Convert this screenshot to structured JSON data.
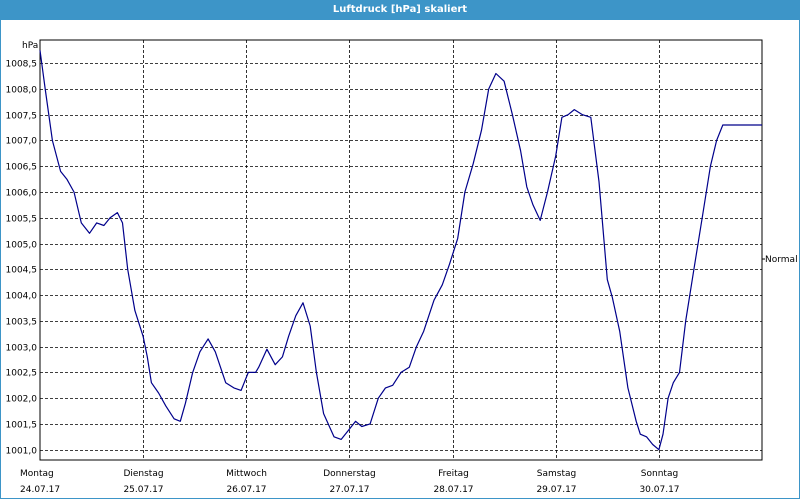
{
  "window": {
    "title": "Luftdruck [hPa] skaliert"
  },
  "chart_data": {
    "type": "line",
    "title": "Luftdruck [hPa] skaliert",
    "ylabel": "hPa",
    "xlabel": "",
    "ylim": [
      1000.8,
      1008.95
    ],
    "yticks": [
      1001.0,
      1001.5,
      1002.0,
      1002.5,
      1003.0,
      1003.5,
      1004.0,
      1004.5,
      1005.0,
      1005.5,
      1006.0,
      1006.5,
      1007.0,
      1007.5,
      1008.0,
      1008.5
    ],
    "ytick_labels": [
      "1001,0",
      "1001,5",
      "1002,0",
      "1002,5",
      "1003,0",
      "1003,5",
      "1004,0",
      "1004,5",
      "1005,0",
      "1005,5",
      "1006,0",
      "1006,5",
      "1007,0",
      "1007,5",
      "1008,0",
      "1008,5"
    ],
    "xlim": [
      0,
      7
    ],
    "x_categories": [
      {
        "day": "Montag",
        "date": "24.07.17"
      },
      {
        "day": "Dienstag",
        "date": "25.07.17"
      },
      {
        "day": "Mittwoch",
        "date": "26.07.17"
      },
      {
        "day": "Donnerstag",
        "date": "27.07.17"
      },
      {
        "day": "Freitag",
        "date": "28.07.17"
      },
      {
        "day": "Samstag",
        "date": "29.07.17"
      },
      {
        "day": "Sonntag",
        "date": "30.07.17"
      }
    ],
    "reference_line": {
      "label": "Normal",
      "value": 1004.7
    },
    "grid": true,
    "series": [
      {
        "color": "#00008b",
        "x": [
          0,
          0.05,
          0.12,
          0.2,
          0.26,
          0.33,
          0.4,
          0.48,
          0.55,
          0.62,
          0.68,
          0.75,
          0.8,
          0.85,
          0.92,
          1.0,
          1.04,
          1.08,
          1.15,
          1.22,
          1.3,
          1.36,
          1.41,
          1.48,
          1.55,
          1.63,
          1.7,
          1.8,
          1.88,
          1.95,
          2.02,
          2.09,
          2.12,
          2.2,
          2.28,
          2.35,
          2.41,
          2.48,
          2.55,
          2.62,
          2.68,
          2.75,
          2.85,
          2.92,
          3.0,
          3.06,
          3.12,
          3.2,
          3.28,
          3.35,
          3.42,
          3.5,
          3.58,
          3.65,
          3.72,
          3.82,
          3.9,
          3.97,
          4.05,
          4.12,
          4.2,
          4.28,
          4.35,
          4.42,
          4.5,
          4.58,
          4.66,
          4.72,
          4.78,
          4.85,
          4.92,
          5.0,
          5.06,
          5.12,
          5.18,
          5.26,
          5.34,
          5.42,
          5.5,
          5.55,
          5.62,
          5.7,
          5.78,
          5.82,
          5.88,
          5.94,
          6.0,
          6.04,
          6.09,
          6.14,
          6.2,
          6.26,
          6.34,
          6.42,
          6.5,
          6.56,
          6.62,
          6.68,
          6.74,
          6.8,
          6.86,
          6.94,
          7.0
        ],
        "values": [
          1008.75,
          1008.0,
          1007.0,
          1006.4,
          1006.25,
          1006.0,
          1005.4,
          1005.2,
          1005.4,
          1005.35,
          1005.5,
          1005.6,
          1005.4,
          1004.5,
          1003.7,
          1003.2,
          1002.8,
          1002.3,
          1002.1,
          1001.85,
          1001.6,
          1001.55,
          1001.9,
          1002.5,
          1002.9,
          1003.15,
          1002.9,
          1002.3,
          1002.2,
          1002.15,
          1002.5,
          1002.5,
          1002.6,
          1002.95,
          1002.65,
          1002.8,
          1003.2,
          1003.6,
          1003.85,
          1003.4,
          1002.5,
          1001.7,
          1001.25,
          1001.2,
          1001.4,
          1001.55,
          1001.45,
          1001.5,
          1002.0,
          1002.2,
          1002.25,
          1002.5,
          1002.6,
          1003.0,
          1003.3,
          1003.9,
          1004.2,
          1004.6,
          1005.1,
          1006.0,
          1006.55,
          1007.2,
          1008.0,
          1008.3,
          1008.15,
          1007.5,
          1006.8,
          1006.1,
          1005.75,
          1005.45,
          1006.0,
          1006.7,
          1007.45,
          1007.5,
          1007.6,
          1007.5,
          1007.45,
          1006.2,
          1004.3,
          1003.95,
          1003.3,
          1002.2,
          1001.55,
          1001.3,
          1001.25,
          1001.1,
          1001.0,
          1001.3,
          1002.0,
          1002.3,
          1002.5,
          1003.5,
          1004.5,
          1005.5,
          1006.5,
          1007.0,
          1007.3,
          1007.3,
          1007.3,
          1007.3,
          1007.3,
          1007.3,
          1007.3
        ]
      }
    ]
  }
}
